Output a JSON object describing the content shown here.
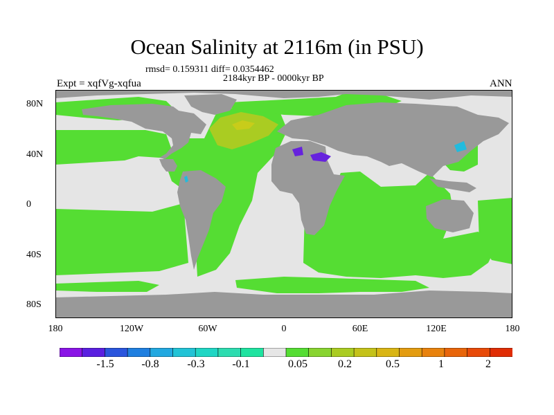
{
  "title": "Ocean Salinity at 2116m (in PSU)",
  "stats_line": "rmsd= 0.159311 diff= 0.0354462",
  "period": "2184kyr BP - 0000kyr BP",
  "experiment": "Expt = xqfVg-xqfua",
  "season": "ANN",
  "colors": {
    "land": "#999999",
    "background_ocean": "#e5e5e5",
    "positive_anomaly": "#55dd33",
    "high_positive_anomaly": "#aacc22",
    "negative_anomaly_strong": "#6622dd",
    "negative_anomaly_weak": "#22bbdd"
  },
  "map": {
    "projection": "cylindrical equidistant",
    "lat_labels": [
      "80N",
      "40N",
      "0",
      "40S",
      "80S"
    ],
    "lon_labels": [
      "180",
      "120W",
      "60W",
      "0",
      "60E",
      "120E",
      "180"
    ]
  },
  "colorbar": {
    "colors": [
      "#8a14e6",
      "#5a1fe0",
      "#2a55dd",
      "#1f7fe0",
      "#22a8e0",
      "#22c3d6",
      "#1fd6c4",
      "#2ddcb0",
      "#1fe3a0",
      "#e6e6e6",
      "#55dd33",
      "#88d430",
      "#aacc22",
      "#c4c21a",
      "#d9b514",
      "#e39c10",
      "#e8820d",
      "#e8650a",
      "#e84a08",
      "#e02d05"
    ],
    "tick_labels": [
      "-1.5",
      "-0.8",
      "-0.3",
      "-0.1",
      "0.05",
      "0.2",
      "0.5",
      "1",
      "2"
    ]
  }
}
